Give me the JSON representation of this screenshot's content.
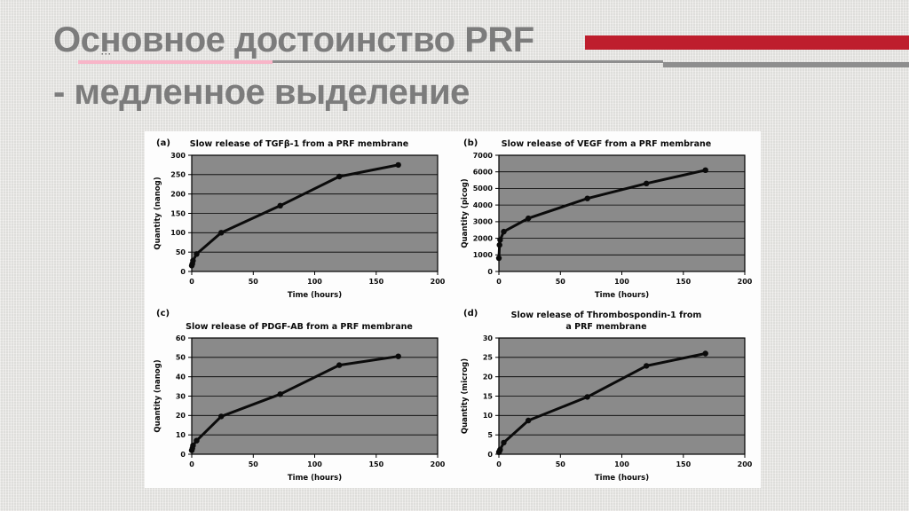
{
  "slide": {
    "title_line1": "Основное достоинство PRF",
    "title_line2": "- медленное выделение"
  },
  "decor": {
    "dots": "···"
  },
  "colors": {
    "accent_red": "#be1e2d",
    "underline_pink": "#f8b5c8",
    "underline_gray": "#8e8e8e",
    "title_gray": "#7c7c7c",
    "slide_bg": "#e8e7e4",
    "panel_bg": "#fdfdfd",
    "plot_bg": "#8a8a8a",
    "series_black": "#0b0b0b"
  },
  "chart_data": [
    {
      "type": "line",
      "panel_label": "(a)",
      "title": "Slow release of TGFβ-1 from a PRF membrane",
      "xlabel": "Time (hours)",
      "ylabel": "Quantity (nanog)",
      "xlim": [
        0,
        200
      ],
      "ylim": [
        0,
        300
      ],
      "xticks": [
        0,
        50,
        100,
        150,
        200
      ],
      "yticks": [
        0,
        50,
        100,
        150,
        200,
        250,
        300
      ],
      "x": [
        0,
        0.5,
        1,
        4,
        24,
        72,
        120,
        168
      ],
      "y": [
        15,
        20,
        28,
        45,
        100,
        170,
        245,
        275
      ],
      "grid": true,
      "legend": false
    },
    {
      "type": "line",
      "panel_label": "(b)",
      "title": "Slow release of VEGF from a PRF membrane",
      "xlabel": "Time (hours)",
      "ylabel": "Quantity (picog)",
      "xlim": [
        0,
        200
      ],
      "ylim": [
        0,
        7000
      ],
      "xticks": [
        0,
        50,
        100,
        150,
        200
      ],
      "yticks": [
        0,
        1000,
        2000,
        3000,
        4000,
        5000,
        6000,
        7000
      ],
      "x": [
        0,
        0.5,
        1,
        4,
        24,
        72,
        120,
        168
      ],
      "y": [
        800,
        1600,
        1900,
        2400,
        3200,
        4400,
        5300,
        6100
      ],
      "grid": true,
      "legend": false
    },
    {
      "type": "line",
      "panel_label": "(c)",
      "title": "Slow release of PDGF-AB from a PRF membrane",
      "xlabel": "Time (hours)",
      "ylabel": "Quantity (nanog)",
      "xlim": [
        0,
        200
      ],
      "ylim": [
        0,
        60
      ],
      "xticks": [
        0,
        50,
        100,
        150,
        200
      ],
      "yticks": [
        0,
        10,
        20,
        30,
        40,
        50,
        60
      ],
      "x": [
        0,
        0.5,
        1,
        4,
        24,
        72,
        120,
        168
      ],
      "y": [
        2,
        3,
        4.5,
        7,
        19.5,
        31,
        46,
        50.5
      ],
      "grid": true,
      "legend": false
    },
    {
      "type": "line",
      "panel_label": "(d)",
      "title": "Slow release of Thrombospondin-1 from a PRF membrane",
      "xlabel": "Time (hours)",
      "ylabel": "Quantity (microg)",
      "xlim": [
        0,
        200
      ],
      "ylim": [
        0,
        30
      ],
      "xticks": [
        0,
        50,
        100,
        150,
        200
      ],
      "yticks": [
        0,
        5,
        10,
        15,
        20,
        25,
        30
      ],
      "x": [
        0,
        0.5,
        1,
        4,
        24,
        72,
        120,
        168
      ],
      "y": [
        0.5,
        0.8,
        1.2,
        3,
        8.7,
        14.8,
        22.8,
        26
      ],
      "grid": true,
      "legend": false
    }
  ]
}
